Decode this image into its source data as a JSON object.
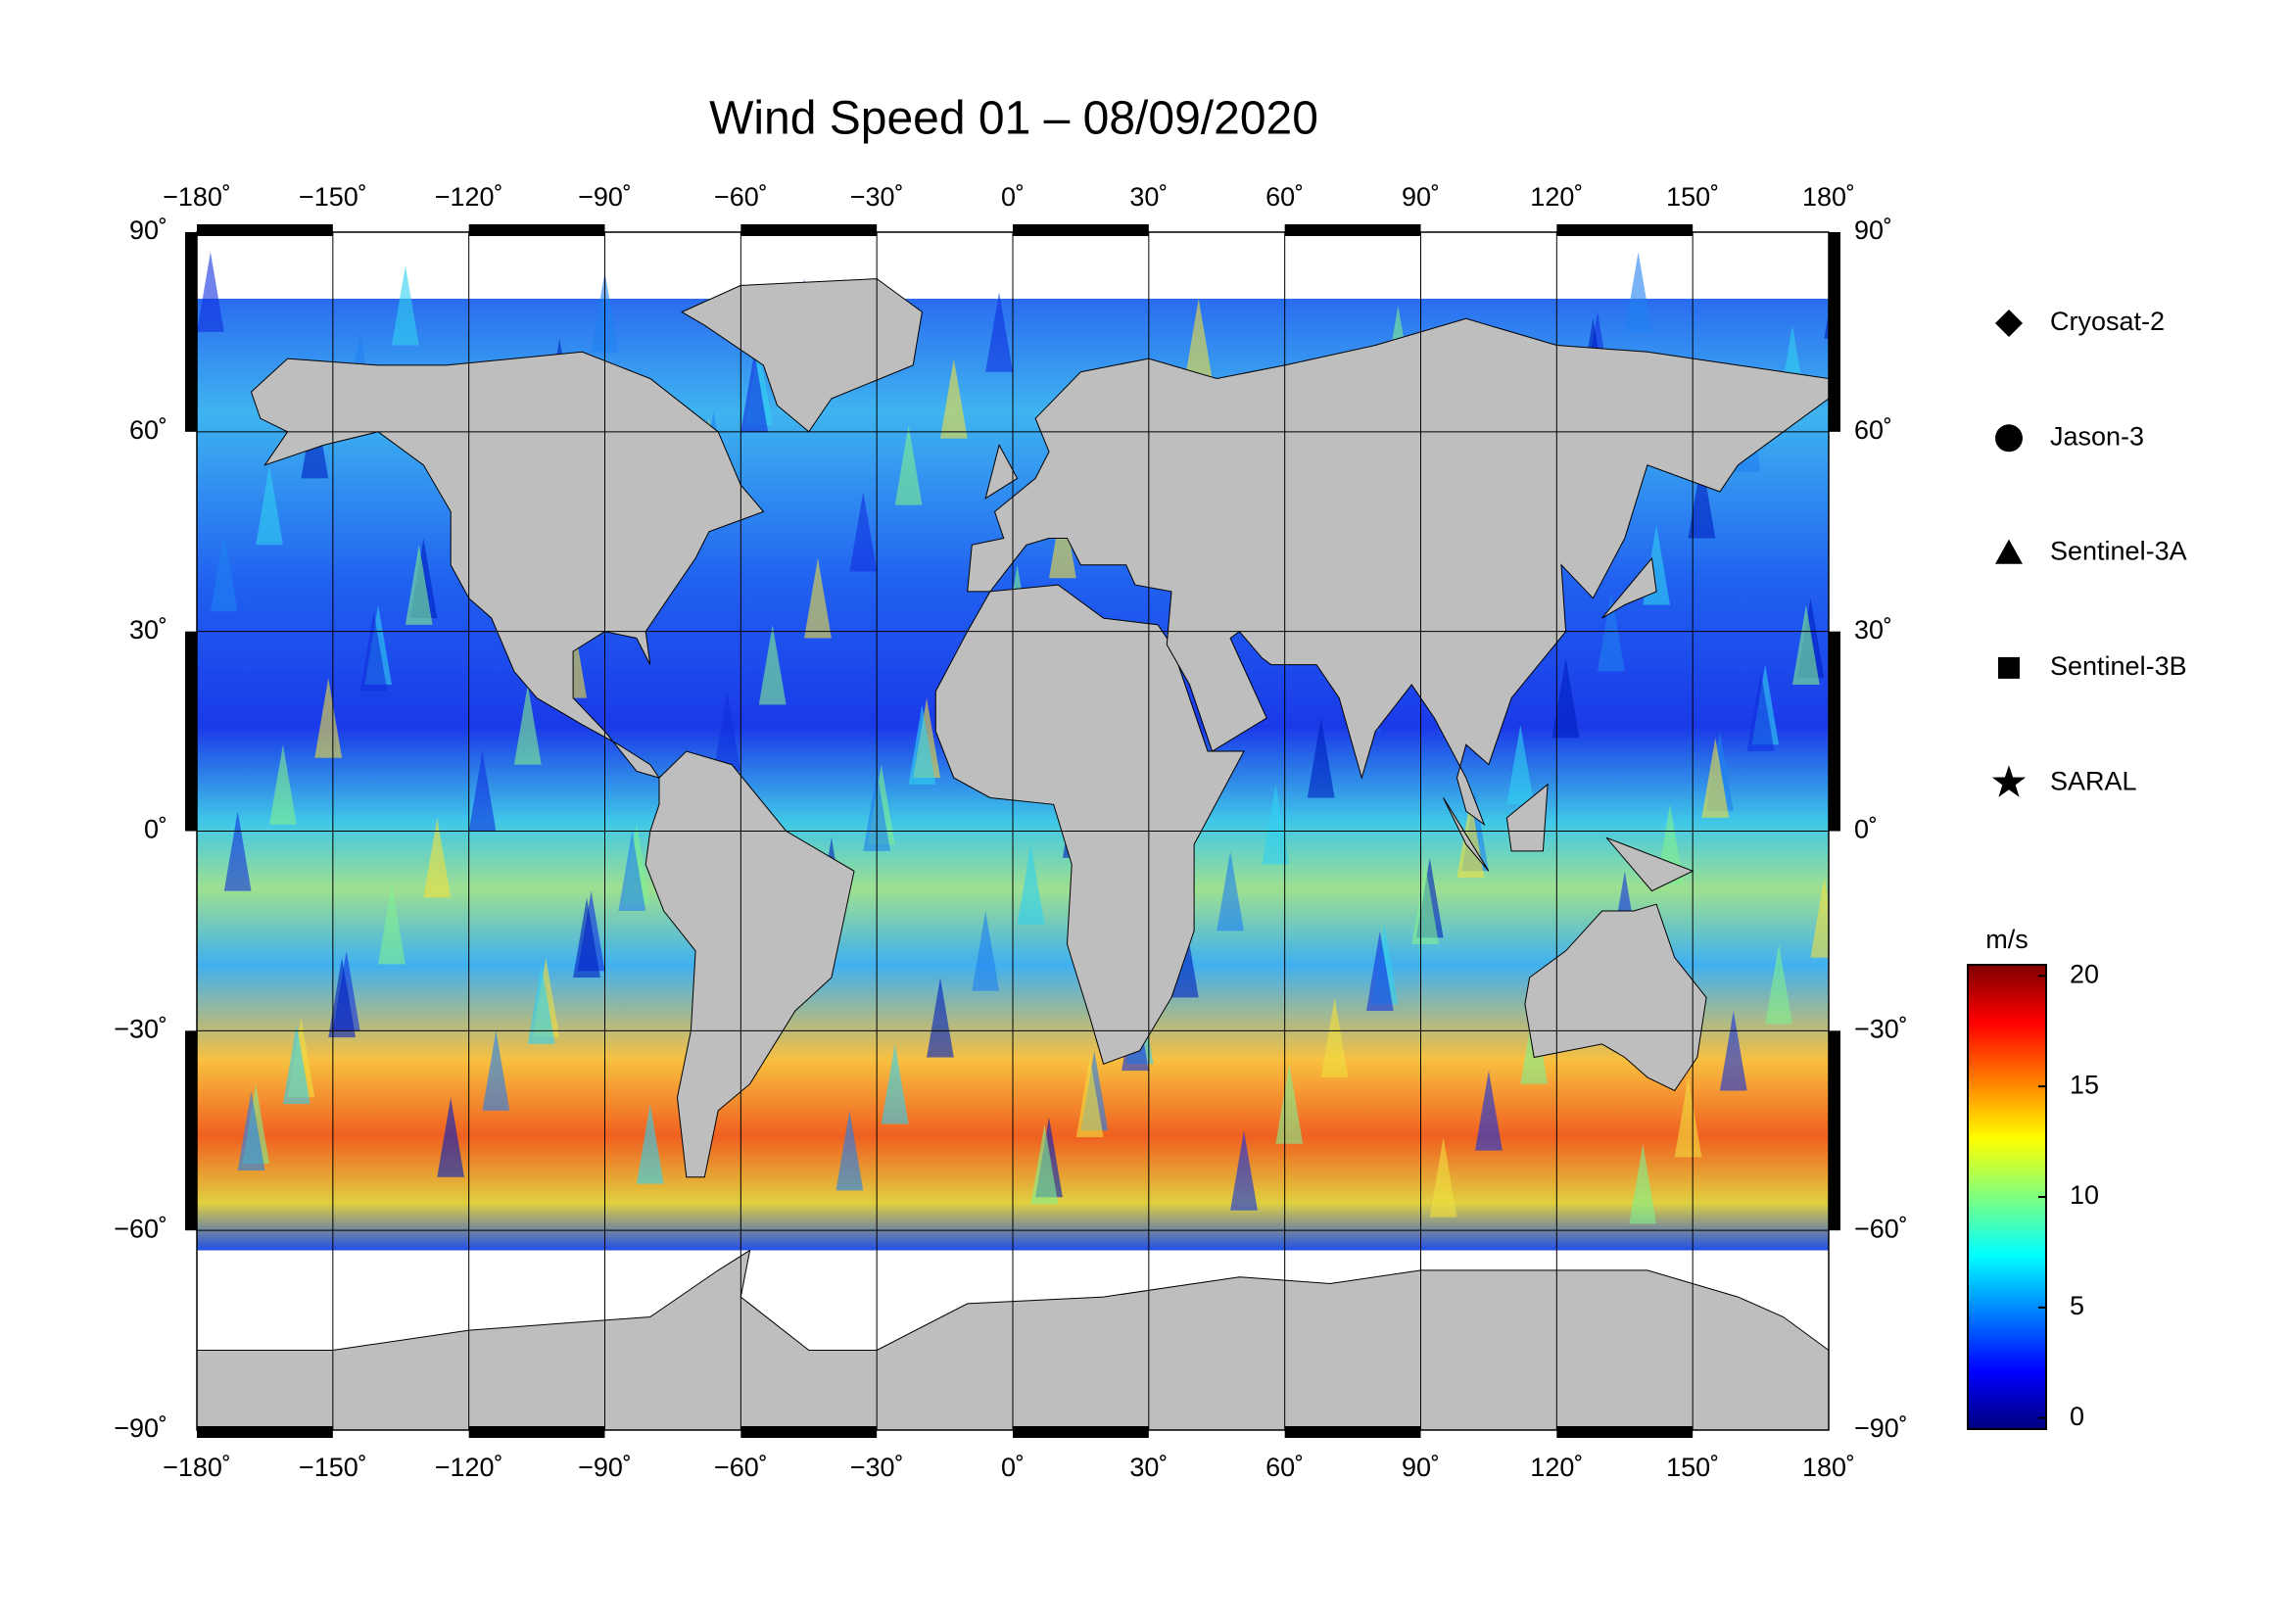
{
  "chart_data": {
    "type": "map",
    "title": "Wind Speed 01 – 08/09/2020",
    "xlim": [
      -180,
      180
    ],
    "ylim": [
      -90,
      90
    ],
    "xticks": [
      {
        "value": -180,
        "label": "−180˚"
      },
      {
        "value": -150,
        "label": "−150˚"
      },
      {
        "value": -120,
        "label": "−120˚"
      },
      {
        "value": -90,
        "label": "−90˚"
      },
      {
        "value": -60,
        "label": "−60˚"
      },
      {
        "value": -30,
        "label": "−30˚"
      },
      {
        "value": 0,
        "label": "0˚"
      },
      {
        "value": 30,
        "label": "30˚"
      },
      {
        "value": 60,
        "label": "60˚"
      },
      {
        "value": 90,
        "label": "90˚"
      },
      {
        "value": 120,
        "label": "120˚"
      },
      {
        "value": 150,
        "label": "150˚"
      },
      {
        "value": 180,
        "label": "180˚"
      }
    ],
    "yticks": [
      {
        "value": -90,
        "label": "−90˚"
      },
      {
        "value": -60,
        "label": "−60˚"
      },
      {
        "value": -30,
        "label": "−30˚"
      },
      {
        "value": 0,
        "label": "0˚"
      },
      {
        "value": 30,
        "label": "30˚"
      },
      {
        "value": 60,
        "label": "60˚"
      },
      {
        "value": 90,
        "label": "90˚"
      }
    ],
    "grid": true,
    "series": [
      {
        "name": "Cryosat-2",
        "marker": "diamond"
      },
      {
        "name": "Jason-3",
        "marker": "circle"
      },
      {
        "name": "Sentinel-3A",
        "marker": "triangle"
      },
      {
        "name": "Sentinel-3B",
        "marker": "square"
      },
      {
        "name": "SARAL",
        "marker": "star"
      }
    ],
    "colorbar": {
      "label": "m/s",
      "clim": [
        -0.5,
        20.5
      ],
      "ticks": [
        0,
        5,
        10,
        15,
        20
      ],
      "colormap": [
        "#00007f",
        "#0000ff",
        "#007fff",
        "#00ffff",
        "#7fff7f",
        "#ffff00",
        "#ff7f00",
        "#ff0000",
        "#7f0000"
      ]
    }
  }
}
